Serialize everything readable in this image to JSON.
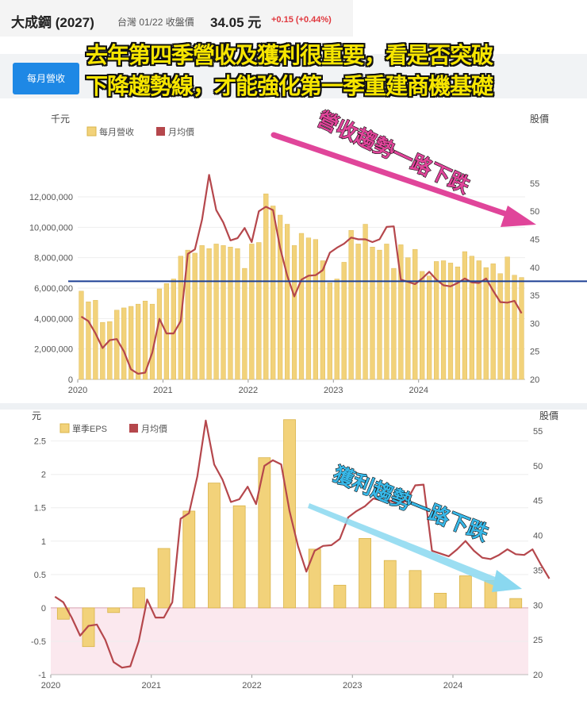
{
  "header": {
    "stock_name": "大成鋼 (2027)",
    "meta": "台灣 01/22 收盤價",
    "price": "34.05 元",
    "change": "+0.15 (+0.44%)"
  },
  "tabs": {
    "monthly_revenue": "每月營收"
  },
  "banner": {
    "line1": "去年第四季營收及獲利很重要，看是否突破",
    "line2": "下降趨勢線，才能強化第一季重建商機基礎"
  },
  "colors": {
    "bar": "#f2d27a",
    "bar_border": "#d9b44a",
    "price_line": "#b5474c",
    "trend_line": "#1c3f94",
    "arrow1": "#e0459a",
    "arrow2": "#8ad8f0",
    "neg_region": "#fbe8ee"
  },
  "chart_data": [
    {
      "type": "bar",
      "left_unit": "千元",
      "right_unit": "股價",
      "legend": [
        "每月營收",
        "月均價"
      ],
      "x_ticks": [
        "2020",
        "2021",
        "2022",
        "2023",
        "2024"
      ],
      "ylim_left": [
        0,
        14000000
      ],
      "yticks_left": [
        "0",
        "2,000,000",
        "4,000,000",
        "6,000,000",
        "8,000,000",
        "10,000,000",
        "12,000,000"
      ],
      "ylim_right": [
        20,
        58
      ],
      "yticks_right": [
        "20",
        "25",
        "30",
        "35",
        "40",
        "45",
        "50",
        "55"
      ],
      "annotation": "營收趨勢一路下跌",
      "trend_level": 6450000,
      "series": [
        {
          "name": "每月營收",
          "axis": "left",
          "values": [
            5800000,
            5100000,
            5200000,
            3750000,
            3800000,
            4550000,
            4700000,
            4800000,
            4950000,
            5150000,
            4950000,
            5950000,
            6300000,
            6600000,
            8100000,
            8500000,
            8300000,
            8800000,
            8600000,
            8900000,
            8800000,
            8700000,
            8600000,
            7300000,
            8900000,
            9000000,
            12200000,
            11400000,
            10800000,
            10200000,
            8800000,
            9600000,
            9300000,
            9200000,
            7800000,
            6350000,
            6600000,
            7700000,
            9800000,
            8900000,
            10200000,
            8700000,
            8500000,
            8900000,
            7300000,
            8850000,
            8000000,
            8550000,
            7100000,
            6800000,
            7750000,
            7800000,
            7650000,
            7400000,
            8400000,
            8100000,
            7800000,
            7350000,
            7600000,
            6950000,
            8050000,
            6850000,
            6700000
          ]
        },
        {
          "name": "月均價",
          "axis": "right",
          "values": [
            31.2,
            30.4,
            28.2,
            25.6,
            27.0,
            27.2,
            25.0,
            21.8,
            21.0,
            21.2,
            24.8,
            30.8,
            28.2,
            28.2,
            30.4,
            42.4,
            43.2,
            48.5,
            56.5,
            50.2,
            48.0,
            44.8,
            45.2,
            47.0,
            44.5,
            50.0,
            50.8,
            50.2,
            43.5,
            38.5,
            34.8,
            37.8,
            38.5,
            38.6,
            39.5,
            42.6,
            43.5,
            44.2,
            45.3,
            45.0,
            45.0,
            44.5,
            45.0,
            47.2,
            47.3,
            37.8,
            37.4,
            37.0,
            38.0,
            39.2,
            37.8,
            36.8,
            36.6,
            37.2,
            38.0,
            37.3,
            37.2,
            38.0,
            35.8,
            33.8,
            33.7,
            34.0,
            31.8
          ]
        }
      ]
    },
    {
      "type": "bar",
      "left_unit": "元",
      "right_unit": "股價",
      "legend": [
        "單季EPS",
        "月均價"
      ],
      "x_ticks": [
        "2020",
        "2021",
        "2022",
        "2023",
        "2024"
      ],
      "ylim_left": [
        -1,
        2.9
      ],
      "yticks_left": [
        "-1",
        "-0.5",
        "0",
        "0.5",
        "1",
        "1.5",
        "2",
        "2.5"
      ],
      "ylim_right": [
        20,
        57.4
      ],
      "yticks_right": [
        "20",
        "25",
        "30",
        "35",
        "40",
        "45",
        "50",
        "55"
      ],
      "annotation": "獲利趨勢一路下跌",
      "series": [
        {
          "name": "單季EPS",
          "axis": "left",
          "values": [
            -0.17,
            -0.58,
            -0.07,
            0.3,
            0.89,
            1.45,
            1.87,
            1.53,
            2.25,
            2.82,
            0.88,
            0.34,
            1.04,
            0.71,
            0.56,
            0.22,
            0.48,
            0.41,
            0.14
          ]
        },
        {
          "name": "月均價",
          "axis": "right",
          "values": [
            31.2,
            30.4,
            28.2,
            25.6,
            27.0,
            27.2,
            25.0,
            21.8,
            21.0,
            21.2,
            24.8,
            30.8,
            28.2,
            28.2,
            30.4,
            42.4,
            43.2,
            48.5,
            56.5,
            50.2,
            48.0,
            44.8,
            45.2,
            47.0,
            44.5,
            50.0,
            50.8,
            50.2,
            43.5,
            38.5,
            34.8,
            37.8,
            38.5,
            38.6,
            39.5,
            42.6,
            43.5,
            44.2,
            45.3,
            45.0,
            45.0,
            44.5,
            45.0,
            47.2,
            47.3,
            37.8,
            37.4,
            37.0,
            38.0,
            39.2,
            37.8,
            36.8,
            36.6,
            37.2,
            38.0,
            37.3,
            37.2,
            38.0,
            35.8,
            33.8
          ]
        }
      ]
    }
  ]
}
